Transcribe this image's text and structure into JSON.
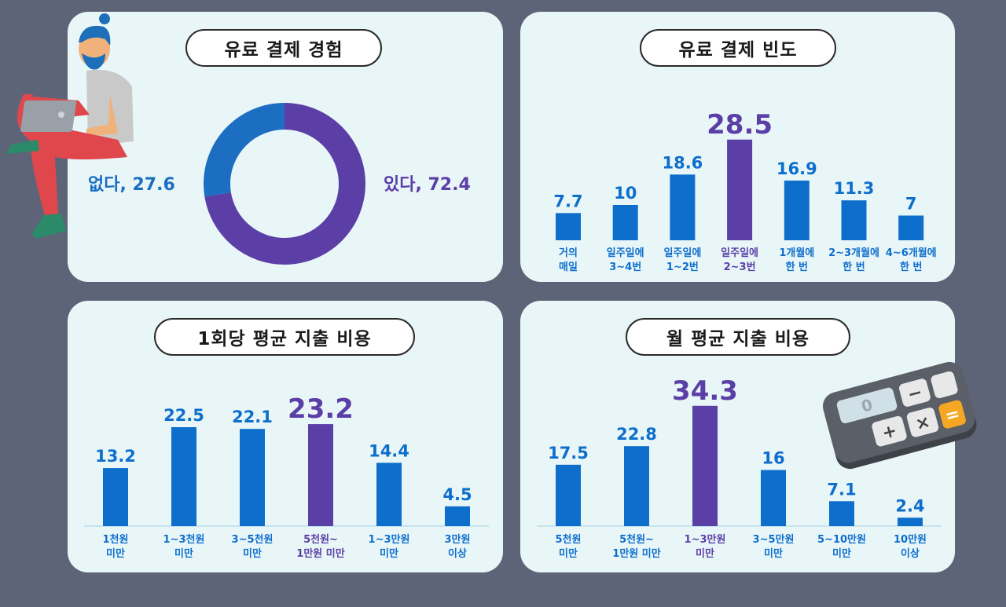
{
  "colors": {
    "blue": "#0d6ecc",
    "purple": "#5b3fa6",
    "bg": "#5e6478",
    "panel": "#e9f6f8"
  },
  "chart_data": [
    {
      "type": "pie",
      "title": "유료 결제 경험",
      "slices": [
        {
          "label": "있다",
          "value": 72.4,
          "text": "있다, 72.4",
          "color": "#5b3fa6"
        },
        {
          "label": "없다",
          "value": 27.6,
          "text": "없다, 27.6",
          "color": "#1b6ec2"
        }
      ]
    },
    {
      "type": "bar",
      "title": "유료 결제 빈도",
      "categories": [
        [
          "거의",
          "매일"
        ],
        [
          "일주일에",
          "3~4번"
        ],
        [
          "일주일에",
          "1~2번"
        ],
        [
          "일주일에",
          "2~3번"
        ],
        [
          "1개월에",
          "한 번"
        ],
        [
          "2~3개월에",
          "한 번"
        ],
        [
          "4~6개월에",
          "한 번"
        ]
      ],
      "values": [
        7.7,
        10,
        18.6,
        28.5,
        16.9,
        11.3,
        7
      ],
      "labels": [
        "7.7",
        "10",
        "18.6",
        "28.5",
        "16.9",
        "11.3",
        "7"
      ],
      "highlight": 3,
      "ylim": [
        0,
        40
      ]
    },
    {
      "type": "bar",
      "title": "1회당 평균 지출 비용",
      "categories": [
        [
          "1천원",
          "미만"
        ],
        [
          "1~3천원",
          "미만"
        ],
        [
          "3~5천원",
          "미만"
        ],
        [
          "5천원~",
          "1만원 미만"
        ],
        [
          "1~3만원",
          "미만"
        ],
        [
          "3만원",
          "이상"
        ]
      ],
      "values": [
        13.2,
        22.5,
        22.1,
        23.2,
        14.4,
        4.5
      ],
      "labels": [
        "13.2",
        "22.5",
        "22.1",
        "23.2",
        "14.4",
        "4.5"
      ],
      "highlight": 3,
      "ylim": [
        0,
        30
      ]
    },
    {
      "type": "bar",
      "title": "월 평균 지출 비용",
      "categories": [
        [
          "5천원",
          "미만"
        ],
        [
          "5천원~",
          "1만원 미만"
        ],
        [
          "1~3만원",
          "미만"
        ],
        [
          "3~5만원",
          "미만"
        ],
        [
          "5~10만원",
          "미만"
        ],
        [
          "10만원",
          "이상"
        ]
      ],
      "values": [
        17.5,
        22.8,
        34.3,
        16,
        7.1,
        2.4
      ],
      "labels": [
        "17.5",
        "22.8",
        "34.3",
        "16",
        "7.1",
        "2.4"
      ],
      "highlight": 2,
      "ylim": [
        0,
        45
      ]
    }
  ]
}
